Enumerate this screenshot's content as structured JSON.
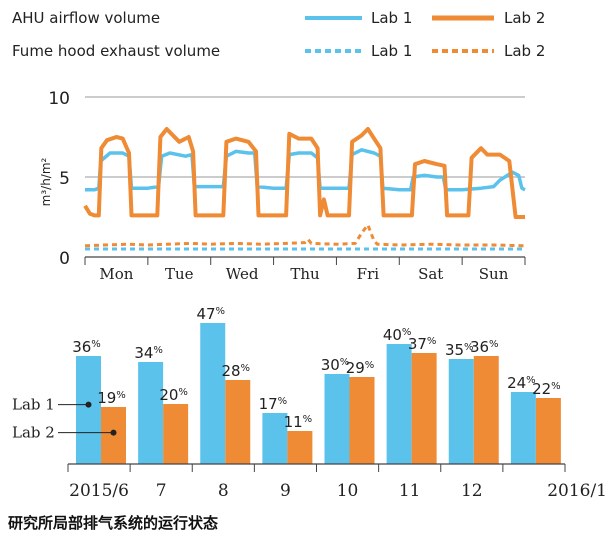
{
  "caption": "研究所局部排气系统的运行状态",
  "colors": {
    "lab1": "#5BC2EC",
    "lab2": "#EF8A35",
    "grid": "#9a9a9a",
    "axis": "#444444"
  },
  "chart_data": [
    {
      "type": "line",
      "legend": {
        "rows": [
          {
            "label": "AHU airflow volume",
            "lab1": "Lab 1",
            "lab2": "Lab 2",
            "style": "solid"
          },
          {
            "label": "Fume hood exhaust volume",
            "lab1": "Lab 1",
            "lab2": "Lab 2",
            "style": "dashed"
          }
        ]
      },
      "ylabel": "m³/h/m²",
      "ylim": [
        0,
        10
      ],
      "yticks": [
        0,
        5,
        10
      ],
      "grid": true,
      "categories": [
        "Mon",
        "Tue",
        "Wed",
        "Thu",
        "Fri",
        "Sat",
        "Sun"
      ],
      "xlim": [
        0,
        7
      ],
      "series": [
        {
          "name": "Lab 1",
          "style": "solid",
          "color": "#5BC2EC",
          "points": [
            [
              0,
              4.2
            ],
            [
              0.15,
              4.2
            ],
            [
              0.22,
              4.3
            ],
            [
              0.25,
              6.0
            ],
            [
              0.4,
              6.5
            ],
            [
              0.6,
              6.5
            ],
            [
              0.7,
              6.3
            ],
            [
              0.74,
              4.3
            ],
            [
              1.0,
              4.3
            ],
            [
              1.17,
              4.4
            ],
            [
              1.22,
              6.3
            ],
            [
              1.35,
              6.5
            ],
            [
              1.6,
              6.3
            ],
            [
              1.7,
              6.4
            ],
            [
              1.74,
              4.4
            ],
            [
              2.0,
              4.4
            ],
            [
              2.2,
              4.4
            ],
            [
              2.25,
              6.3
            ],
            [
              2.4,
              6.6
            ],
            [
              2.6,
              6.5
            ],
            [
              2.7,
              6.5
            ],
            [
              2.74,
              4.4
            ],
            [
              3.0,
              4.3
            ],
            [
              3.2,
              4.3
            ],
            [
              3.25,
              6.4
            ],
            [
              3.4,
              6.5
            ],
            [
              3.6,
              6.5
            ],
            [
              3.7,
              6.2
            ],
            [
              3.74,
              4.3
            ],
            [
              4.0,
              4.3
            ],
            [
              4.2,
              4.3
            ],
            [
              4.25,
              6.4
            ],
            [
              4.4,
              6.7
            ],
            [
              4.6,
              6.5
            ],
            [
              4.7,
              6.3
            ],
            [
              4.74,
              4.3
            ],
            [
              5.0,
              4.2
            ],
            [
              5.18,
              4.2
            ],
            [
              5.22,
              5.0
            ],
            [
              5.4,
              5.1
            ],
            [
              5.6,
              5.0
            ],
            [
              5.7,
              5.0
            ],
            [
              5.74,
              4.2
            ],
            [
              6.0,
              4.2
            ],
            [
              6.3,
              4.3
            ],
            [
              6.5,
              4.4
            ],
            [
              6.6,
              4.8
            ],
            [
              6.8,
              5.3
            ],
            [
              6.9,
              5.1
            ],
            [
              6.95,
              4.3
            ],
            [
              7.0,
              4.2
            ]
          ]
        },
        {
          "name": "Lab 2",
          "style": "solid",
          "color": "#EF8A35",
          "points": [
            [
              0,
              3.2
            ],
            [
              0.08,
              2.7
            ],
            [
              0.15,
              2.6
            ],
            [
              0.22,
              2.6
            ],
            [
              0.26,
              6.8
            ],
            [
              0.35,
              7.3
            ],
            [
              0.5,
              7.5
            ],
            [
              0.6,
              7.4
            ],
            [
              0.7,
              6.5
            ],
            [
              0.74,
              2.6
            ],
            [
              1.0,
              2.6
            ],
            [
              1.15,
              2.6
            ],
            [
              1.2,
              7.5
            ],
            [
              1.3,
              8.0
            ],
            [
              1.5,
              7.2
            ],
            [
              1.65,
              7.5
            ],
            [
              1.72,
              6.6
            ],
            [
              1.76,
              2.6
            ],
            [
              2.0,
              2.6
            ],
            [
              2.2,
              2.6
            ],
            [
              2.25,
              7.2
            ],
            [
              2.4,
              7.4
            ],
            [
              2.6,
              7.2
            ],
            [
              2.72,
              6.6
            ],
            [
              2.76,
              2.6
            ],
            [
              3.0,
              2.6
            ],
            [
              3.2,
              2.6
            ],
            [
              3.25,
              7.7
            ],
            [
              3.4,
              7.4
            ],
            [
              3.6,
              7.4
            ],
            [
              3.7,
              6.8
            ],
            [
              3.74,
              2.6
            ],
            [
              3.8,
              3.6
            ],
            [
              3.86,
              2.6
            ],
            [
              4.0,
              2.6
            ],
            [
              4.2,
              2.6
            ],
            [
              4.25,
              7.2
            ],
            [
              4.4,
              7.6
            ],
            [
              4.5,
              8.0
            ],
            [
              4.6,
              7.4
            ],
            [
              4.7,
              6.8
            ],
            [
              4.75,
              2.6
            ],
            [
              5.0,
              2.6
            ],
            [
              5.2,
              2.6
            ],
            [
              5.25,
              5.8
            ],
            [
              5.4,
              6.0
            ],
            [
              5.6,
              5.8
            ],
            [
              5.72,
              5.7
            ],
            [
              5.76,
              2.6
            ],
            [
              6.0,
              2.6
            ],
            [
              6.1,
              2.6
            ],
            [
              6.15,
              6.2
            ],
            [
              6.3,
              6.8
            ],
            [
              6.4,
              6.4
            ],
            [
              6.6,
              6.4
            ],
            [
              6.75,
              6.0
            ],
            [
              6.85,
              2.5
            ],
            [
              7.0,
              2.5
            ]
          ]
        },
        {
          "name": "Lab 1",
          "style": "dashed",
          "color": "#5BC2EC",
          "points": [
            [
              0,
              0.5
            ],
            [
              0.5,
              0.5
            ],
            [
              1.0,
              0.5
            ],
            [
              1.5,
              0.5
            ],
            [
              2.0,
              0.5
            ],
            [
              2.5,
              0.5
            ],
            [
              3.0,
              0.5
            ],
            [
              3.5,
              0.5
            ],
            [
              4.0,
              0.5
            ],
            [
              4.5,
              0.5
            ],
            [
              5.0,
              0.5
            ],
            [
              5.5,
              0.5
            ],
            [
              6.0,
              0.5
            ],
            [
              6.5,
              0.5
            ],
            [
              7.0,
              0.5
            ]
          ]
        },
        {
          "name": "Lab 2",
          "style": "dashed",
          "color": "#EF8A35",
          "points": [
            [
              0,
              0.7
            ],
            [
              0.3,
              0.75
            ],
            [
              0.7,
              0.8
            ],
            [
              1.0,
              0.75
            ],
            [
              1.3,
              0.8
            ],
            [
              1.7,
              0.85
            ],
            [
              2.0,
              0.8
            ],
            [
              2.4,
              0.85
            ],
            [
              2.8,
              0.8
            ],
            [
              3.2,
              0.85
            ],
            [
              3.5,
              0.9
            ],
            [
              3.55,
              1.1
            ],
            [
              3.6,
              0.85
            ],
            [
              4.0,
              0.8
            ],
            [
              4.3,
              0.85
            ],
            [
              4.4,
              1.5
            ],
            [
              4.5,
              2.0
            ],
            [
              4.55,
              1.5
            ],
            [
              4.6,
              1.0
            ],
            [
              4.65,
              0.8
            ],
            [
              5.0,
              0.75
            ],
            [
              5.5,
              0.8
            ],
            [
              6.0,
              0.75
            ],
            [
              6.5,
              0.75
            ],
            [
              7.0,
              0.7
            ]
          ]
        }
      ]
    },
    {
      "type": "bar",
      "categories": [
        "2015/6",
        "7",
        "8",
        "9",
        "10",
        "11",
        "12",
        "2016/1"
      ],
      "unit": "%",
      "ylim": [
        0,
        50
      ],
      "series": [
        {
          "name": "Lab 1",
          "color": "#5BC2EC",
          "values": [
            36,
            34,
            47,
            17,
            30,
            40,
            35,
            24
          ]
        },
        {
          "name": "Lab 2",
          "color": "#EF8A35",
          "values": [
            19,
            20,
            28,
            11,
            29,
            37,
            36,
            22
          ]
        }
      ]
    }
  ]
}
